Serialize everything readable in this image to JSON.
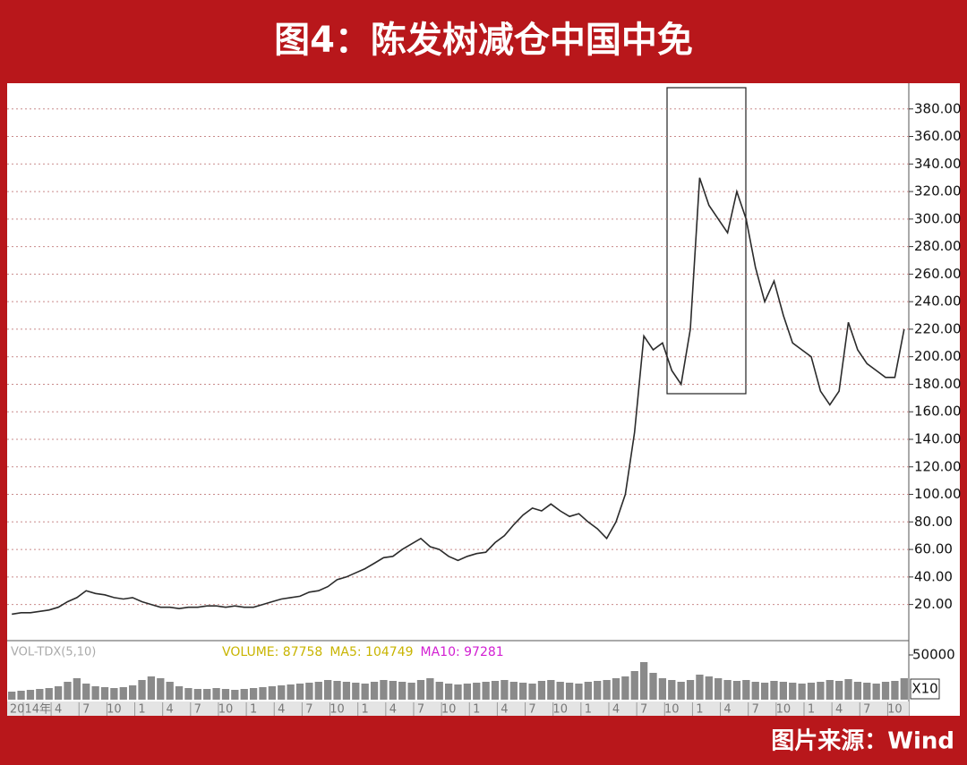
{
  "title": "图4：陈发树减仓中国中免",
  "source": "图片来源：Wind",
  "chart_data": [
    {
      "type": "line",
      "color": "#2b2b2b",
      "grid": true,
      "categories": [
        null,
        null,
        "2014年",
        null,
        null,
        "4",
        null,
        null,
        "7",
        null,
        null,
        "10",
        null,
        null,
        "1",
        null,
        null,
        "4",
        null,
        null,
        "7",
        null,
        null,
        "10",
        null,
        null,
        "1",
        null,
        null,
        "4",
        null,
        null,
        "7",
        null,
        null,
        "10",
        null,
        null,
        "1",
        null,
        null,
        "4",
        null,
        null,
        "7",
        null,
        null,
        "10",
        null,
        null,
        "1",
        null,
        null,
        "4",
        null,
        null,
        "7",
        null,
        null,
        "10",
        null,
        null,
        "1",
        null,
        null,
        "4",
        null,
        null,
        "7",
        null,
        null,
        "10",
        null,
        null,
        "1",
        null,
        null,
        "4",
        null,
        null,
        "7",
        null,
        null,
        "10",
        null,
        null,
        "1",
        null,
        null,
        "4",
        null,
        null,
        "7",
        null,
        null,
        "10",
        null
      ],
      "values": [
        13,
        14,
        14,
        15,
        16,
        18,
        22,
        25,
        30,
        28,
        27,
        25,
        24,
        25,
        22,
        20,
        18,
        18,
        17,
        18,
        18,
        19,
        19,
        18,
        19,
        18,
        18,
        20,
        22,
        24,
        25,
        26,
        29,
        30,
        33,
        38,
        40,
        43,
        46,
        50,
        54,
        55,
        60,
        64,
        68,
        62,
        60,
        55,
        52,
        55,
        57,
        58,
        65,
        70,
        78,
        85,
        90,
        88,
        93,
        88,
        84,
        86,
        80,
        75,
        68,
        80,
        100,
        145,
        215,
        205,
        210,
        190,
        180,
        220,
        330,
        310,
        300,
        290,
        320,
        300,
        265,
        240,
        255,
        230,
        210,
        205,
        200,
        175,
        165,
        175,
        225,
        205,
        195,
        190,
        185,
        185,
        220
      ],
      "ylim": [
        10,
        400
      ],
      "yticks": [
        {
          "value": 20,
          "label": "20.00"
        },
        {
          "value": 40,
          "label": "40.00"
        },
        {
          "value": 60,
          "label": "60.00"
        },
        {
          "value": 80,
          "label": "80.00"
        },
        {
          "value": 100,
          "label": "100.00"
        },
        {
          "value": 120,
          "label": "120.00"
        },
        {
          "value": 140,
          "label": "140.00"
        },
        {
          "value": 160,
          "label": "160.00"
        },
        {
          "value": 180,
          "label": "180.00"
        },
        {
          "value": 200,
          "label": "200.00"
        },
        {
          "value": 220,
          "label": "220.00"
        },
        {
          "value": 240,
          "label": "240.00"
        },
        {
          "value": 260,
          "label": "260.00"
        },
        {
          "value": 280,
          "label": "280.00"
        },
        {
          "value": 300,
          "label": "300.00"
        },
        {
          "value": 320,
          "label": "320.00"
        },
        {
          "value": 340,
          "label": "340.00"
        },
        {
          "value": 360,
          "label": "360.00"
        },
        {
          "value": 380,
          "label": "380.00"
        }
      ]
    },
    {
      "type": "bar",
      "color": "#8a8a8a",
      "indicator": "VOL-TDX(5,10)",
      "readouts": [
        {
          "text": "VOLUME: 87758",
          "color": "#c8b400"
        },
        {
          "text": "MA5: 104749",
          "color": "#c8b400"
        },
        {
          "text": "MA10: 97281",
          "color": "#d21fd2"
        }
      ],
      "multiplier": "X10",
      "values": [
        9000,
        10000,
        11000,
        12000,
        13000,
        15000,
        20000,
        24000,
        18000,
        15000,
        14000,
        13000,
        14000,
        16000,
        22000,
        26000,
        24000,
        20000,
        15000,
        13000,
        12000,
        12000,
        13000,
        12000,
        11000,
        12000,
        13000,
        14000,
        15000,
        16000,
        17000,
        18000,
        19000,
        20000,
        22000,
        21000,
        20000,
        19000,
        18000,
        20000,
        22000,
        21000,
        20000,
        19000,
        22000,
        24000,
        20000,
        18000,
        17000,
        18000,
        19000,
        20000,
        21000,
        22000,
        20000,
        19000,
        18000,
        21000,
        22000,
        20000,
        19000,
        18000,
        20000,
        21000,
        22000,
        24000,
        26000,
        32000,
        42000,
        30000,
        24000,
        22000,
        20000,
        22000,
        28000,
        26000,
        24000,
        22000,
        21000,
        22000,
        20000,
        19000,
        21000,
        20000,
        19000,
        18000,
        19000,
        20000,
        22000,
        21000,
        23000,
        20000,
        19000,
        18000,
        20000,
        21000,
        24000
      ],
      "ylim": [
        0,
        60000
      ],
      "yticks": [
        50000
      ]
    }
  ]
}
